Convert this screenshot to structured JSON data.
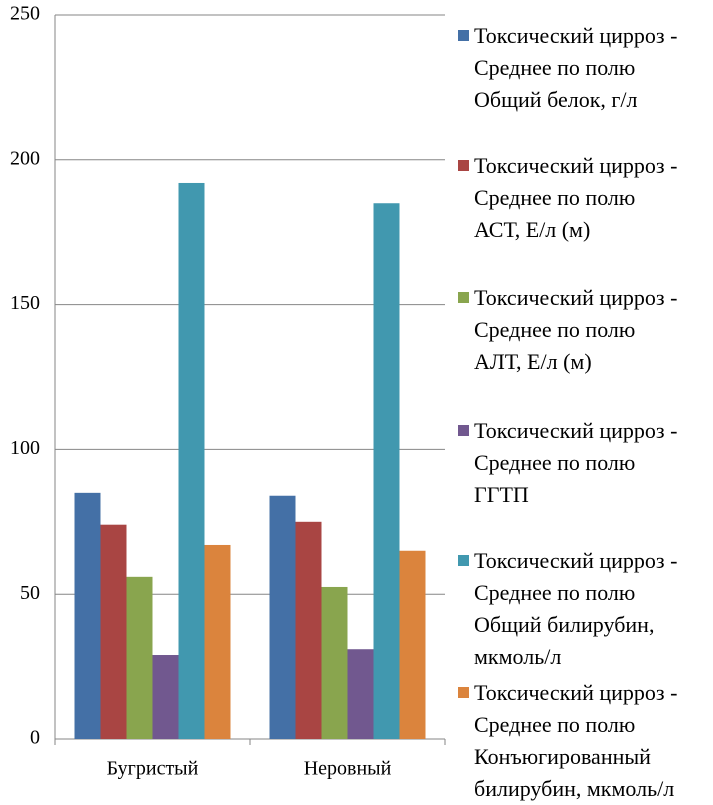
{
  "chart_data": {
    "type": "bar",
    "categories": [
      "Бугристый",
      "Неровный"
    ],
    "series": [
      {
        "name": "Токсический цирроз -\nСреднее по полю\nОбщий белок, г/л",
        "color": "#4470a6",
        "values": [
          85,
          84
        ]
      },
      {
        "name": "Токсический цирроз -\nСреднее по полю\nАСТ, Е/л (м)",
        "color": "#a94543",
        "values": [
          74,
          75
        ]
      },
      {
        "name": "Токсический цирроз -\nСреднее по полю\nАЛТ, Е/л (м)",
        "color": "#89a54e",
        "values": [
          56,
          52.5
        ]
      },
      {
        "name": "Токсический цирроз -\nСреднее по полю\nГГТП",
        "color": "#71588f",
        "values": [
          29,
          31
        ]
      },
      {
        "name": "Токсический цирроз -\nСреднее по полю\nОбщий билирубин,\nмкмоль/л",
        "color": "#4198af",
        "values": [
          192,
          185
        ]
      },
      {
        "name": "Токсический цирроз -\nСреднее по полю\nКонъюгированный\nбилирубин, мкмоль/л",
        "color": "#db843d",
        "values": [
          67,
          65
        ]
      }
    ],
    "ylim": [
      0,
      250
    ],
    "yticks": [
      0,
      50,
      100,
      150,
      200,
      250
    ],
    "grid": true,
    "legend": "right"
  }
}
